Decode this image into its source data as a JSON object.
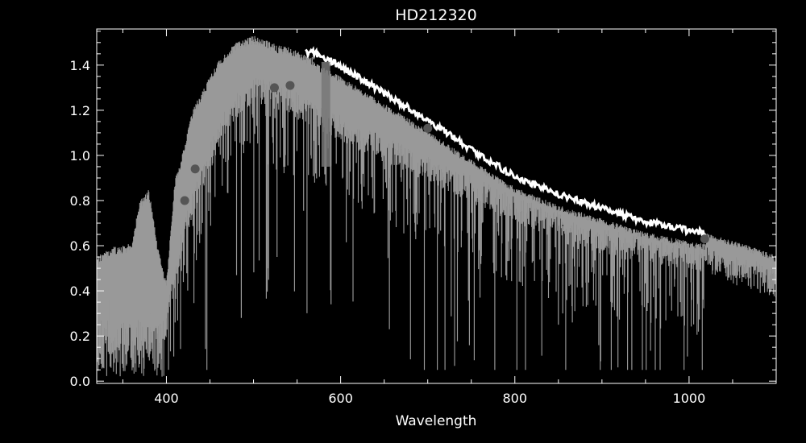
{
  "chart_data": {
    "type": "line",
    "title": "HD212320",
    "xlabel": "Wavelength",
    "ylabel": "",
    "xlim": [
      320,
      1100
    ],
    "ylim": [
      -0.01,
      1.56
    ],
    "xticks": [
      400,
      600,
      800,
      1000
    ],
    "yticks": [
      0.0,
      0.2,
      0.4,
      0.6,
      0.8,
      1.0,
      1.2,
      1.4
    ],
    "grid": false,
    "colors": {
      "background": "#000000",
      "axes": "#ffffff",
      "observed_spectrum": "#999999",
      "model_continuum": "#ffffff",
      "photometry_points": "#555555"
    },
    "series": [
      {
        "kind": "continuum_envelope",
        "x": [
          320,
          330,
          340,
          350,
          360,
          370,
          380,
          390,
          400,
          410,
          420,
          430,
          440,
          450,
          460,
          470,
          480,
          490,
          500,
          510,
          520,
          540,
          560,
          580,
          600,
          650,
          700,
          750,
          800,
          850,
          900,
          950,
          1000,
          1020
        ],
        "y": [
          0.55,
          0.58,
          0.6,
          0.6,
          0.62,
          0.8,
          0.85,
          0.6,
          0.45,
          0.9,
          1.03,
          1.2,
          1.28,
          1.35,
          1.42,
          1.46,
          1.5,
          1.52,
          1.53,
          1.52,
          1.5,
          1.48,
          1.45,
          1.41,
          1.37,
          1.25,
          1.13,
          1.0,
          0.88,
          0.8,
          0.74,
          0.69,
          0.65,
          0.64
        ]
      },
      {
        "kind": "observed_median",
        "x": [
          320,
          340,
          360,
          380,
          400,
          420,
          440,
          460,
          480,
          500,
          520,
          540,
          560,
          580,
          600,
          650,
          700,
          750,
          800,
          850,
          870,
          900,
          950,
          1000,
          1050,
          1100
        ],
        "y": [
          0.28,
          0.3,
          0.35,
          0.35,
          0.32,
          0.72,
          0.95,
          1.15,
          1.28,
          1.35,
          1.33,
          1.3,
          1.26,
          1.22,
          1.18,
          1.09,
          1.0,
          0.91,
          0.82,
          0.75,
          0.7,
          0.68,
          0.64,
          0.61,
          0.58,
          0.55
        ]
      },
      {
        "kind": "model_continuum_curve",
        "x": [
          570,
          600,
          650,
          700,
          750,
          800,
          850,
          900,
          950,
          1000,
          1020
        ],
        "y": [
          1.45,
          1.39,
          1.27,
          1.15,
          1.02,
          0.9,
          0.82,
          0.76,
          0.7,
          0.66,
          0.65
        ]
      },
      {
        "kind": "tail_curve",
        "x": [
          1020,
          1050,
          1080,
          1100
        ],
        "y": [
          0.64,
          0.61,
          0.57,
          0.54
        ]
      },
      {
        "kind": "photometry",
        "x": [
          421,
          433,
          524,
          542,
          700,
          1018
        ],
        "y": [
          0.8,
          0.94,
          1.3,
          1.31,
          1.12,
          0.63
        ]
      }
    ]
  }
}
